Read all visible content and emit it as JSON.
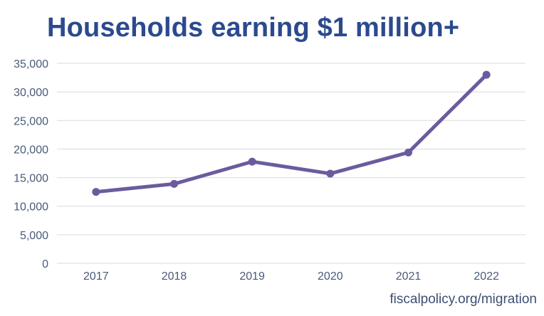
{
  "title": "Households earning $1 million+",
  "source": "fiscalpolicy.org/migration",
  "colors": {
    "title": "#2b4a8e",
    "line": "#6b5b9e",
    "grid": "#d9d9e3",
    "tick_text": "#4a5a7a"
  },
  "chart_data": {
    "type": "line",
    "title": "Households earning $1 million+",
    "xlabel": "",
    "ylabel": "",
    "x": [
      "2017",
      "2018",
      "2019",
      "2020",
      "2021",
      "2022"
    ],
    "series": [
      {
        "values": [
          12500,
          13900,
          17800,
          15700,
          19400,
          33000
        ]
      }
    ],
    "ylim": [
      0,
      35000
    ],
    "yticks": [
      0,
      5000,
      10000,
      15000,
      20000,
      25000,
      30000,
      35000
    ],
    "ytick_labels": [
      "0",
      "5,000",
      "10,000",
      "15,000",
      "20,000",
      "25,000",
      "30,000",
      "35,000"
    ],
    "grid": true,
    "legend": "none"
  }
}
